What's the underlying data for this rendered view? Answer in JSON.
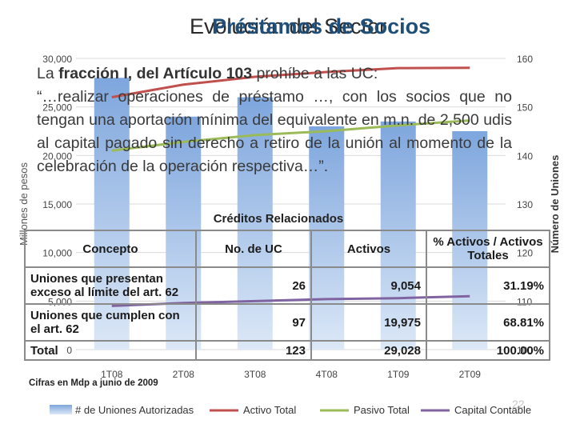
{
  "title_behind": "Evolución del Sector",
  "title_front": "Préstamos de Socios",
  "chart_data": {
    "type": "bar",
    "categories": [
      "1T08",
      "2T08",
      "3T08",
      "4T08",
      "1T09",
      "2T09"
    ],
    "y_left_ticks": [
      "0",
      "5,000",
      "10,000",
      "15,000",
      "20,000",
      "25,000",
      "30,000"
    ],
    "y_left_range": [
      0,
      30000
    ],
    "y_left_label": "Millones de pesos",
    "y_right_ticks": [
      "100",
      "110",
      "120",
      "130",
      "140",
      "150",
      "160"
    ],
    "y_right_range": [
      100,
      160
    ],
    "y_right_label": "Número de Uniones",
    "bar_series": {
      "name": "# de Uniones Autorizadas",
      "axis": "right",
      "values": [
        156,
        148,
        152,
        146,
        147,
        145
      ],
      "color": "#8fb3e3"
    },
    "line_series": [
      {
        "name": "Activo Total",
        "axis": "left",
        "values": [
          26000,
          27300,
          28100,
          28600,
          29000,
          29028
        ],
        "color": "#c0504d"
      },
      {
        "name": "Pasivo Total",
        "axis": "left",
        "values": [
          20500,
          21400,
          22100,
          22500,
          23100,
          23600
        ],
        "color": "#9bbb59"
      },
      {
        "name": "Capital Contable",
        "axis": "left",
        "values": [
          4500,
          4800,
          5000,
          5200,
          5300,
          5500
        ],
        "color": "#8064a2"
      }
    ],
    "legend_position": "bottom"
  },
  "paragraph": {
    "line1_pre": "La ",
    "line1_bold": "fracción I, del Artículo 103",
    "line1_post": " prohíbe a las UC:",
    "quote": "“…realizar operaciones de préstamo …, con los socios que no tengan una aportación mínima del equivalente en m.n. de 2,500 udis al capital pagado sin derecho a retiro de la unión al momento de la celebración de la operación respectiva…”."
  },
  "table": {
    "title": "Créditos Relacionados",
    "headers": [
      "Concepto",
      "No. de UC",
      "Activos",
      "% Activos / Activos Totales"
    ],
    "rows": [
      [
        "Uniones que presentan exceso al límite del art. 62",
        "26",
        "9,054",
        "31.19%"
      ],
      [
        "Uniones que cumplen con el art. 62",
        "97",
        "19,975",
        "68.81%"
      ]
    ],
    "total": [
      "Total",
      "123",
      "29,028",
      "100.00%"
    ]
  },
  "footnote": "Cifras en Mdp a junio de 2009",
  "page_number": "22"
}
